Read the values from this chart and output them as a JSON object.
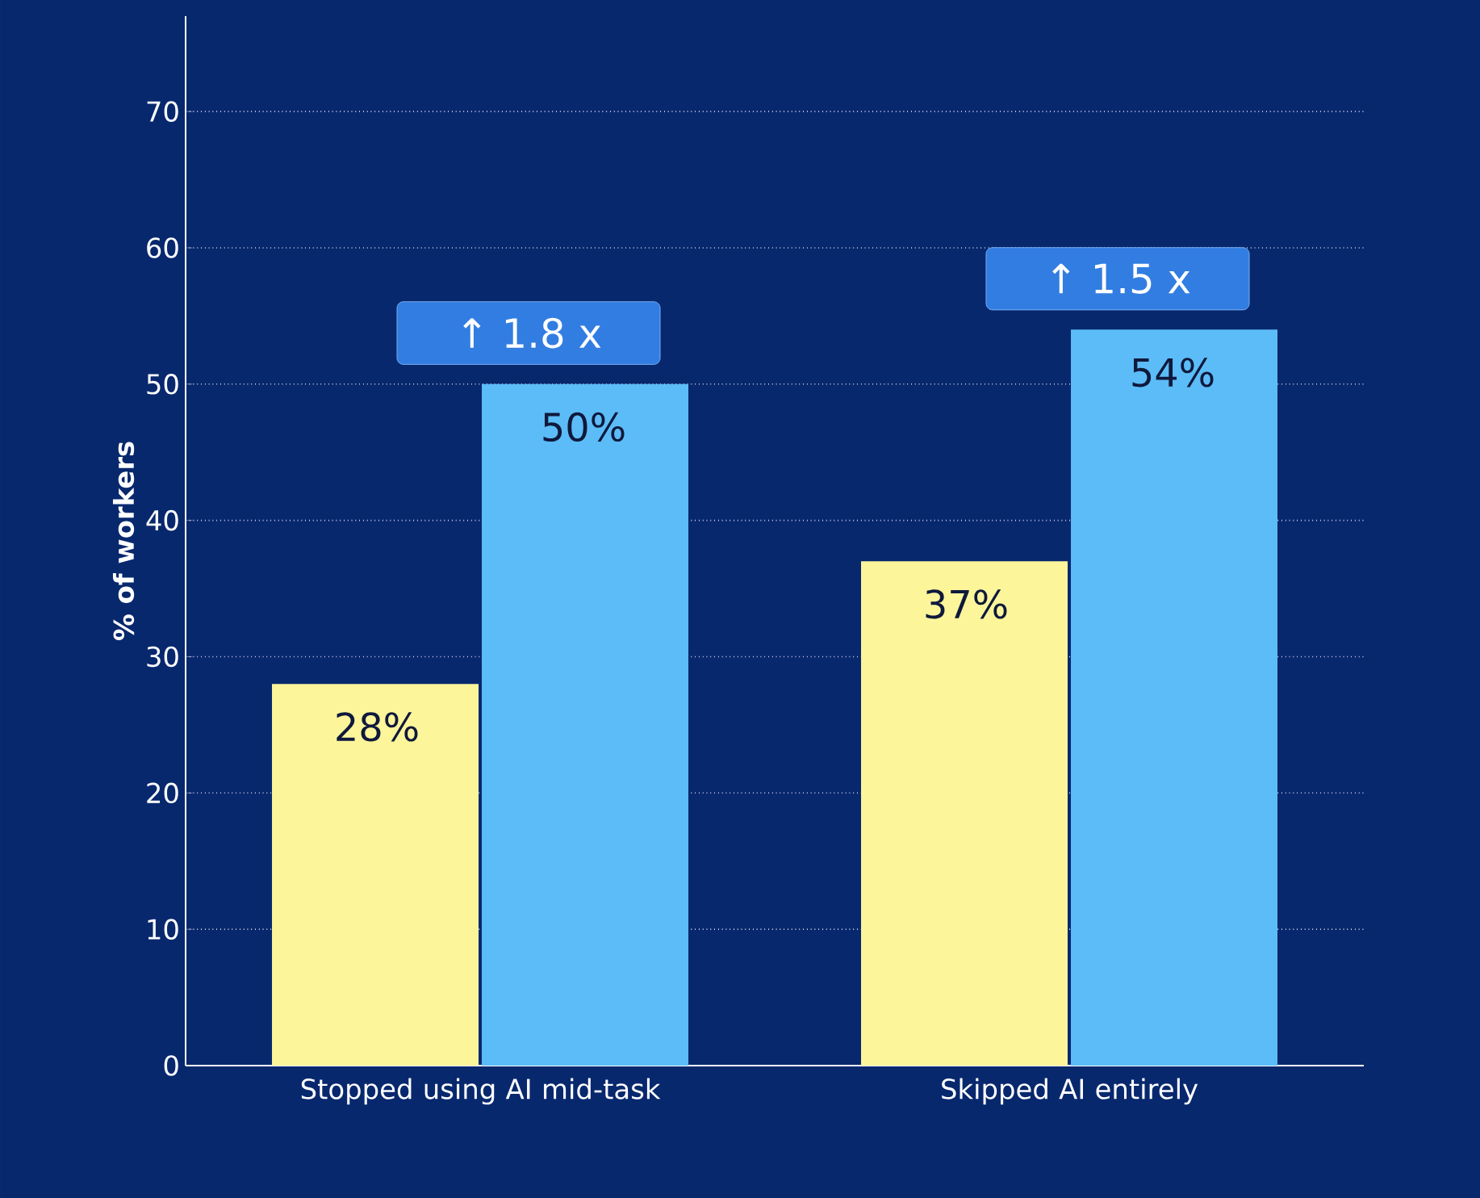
{
  "chart_data": {
    "type": "bar",
    "ylabel": "% of workers",
    "categories": [
      "Stopped using AI mid-task",
      "Skipped AI entirely"
    ],
    "series": [
      {
        "color": "#fdf59a",
        "values": [
          28,
          37
        ],
        "value_labels": [
          "28%",
          "37%"
        ]
      },
      {
        "color": "#5cbcf7",
        "values": [
          50,
          54
        ],
        "value_labels": [
          "50%",
          "54%"
        ]
      }
    ],
    "ylim": [
      0,
      77
    ],
    "yticks": [
      0,
      10,
      20,
      30,
      40,
      50,
      60,
      70
    ],
    "grid": "y",
    "annotations": [
      "↑ 1.8 x",
      "↑ 1.5 x"
    ]
  }
}
